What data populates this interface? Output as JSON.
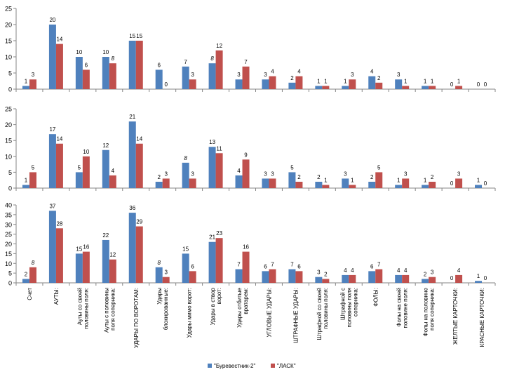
{
  "chart_data": {
    "type": "bar",
    "categories": [
      "Счет",
      "АУТЫ:",
      "Ауты со своей половины поля:",
      "Ауты с половины поля соперника:",
      "УДАРЫ ПО ВОРОТАМ:",
      "Удары блокированные:",
      "Удары мимо ворот:",
      "Удары в створ ворот:",
      "Удары отбитые вратарем:",
      "УГЛОВЫЕ УДАРЫ:",
      "ШТРАФНЫЕ УДАРЫ:",
      "Штрафной со своей половины поля:",
      "Штрафной с половины поля соперника:",
      "ФОЛЫ:",
      "Фолы на своей половине поля:",
      "Фолы на половине поля соперника:",
      "ЖЕЛТЫЕ КАРТОЧКИ:",
      "КРАСНЫЕ КАРТОЧКИ:"
    ],
    "legend": [
      "\"Буревестник-2\"",
      "\"ЛАСК\""
    ],
    "colors": {
      "series1": "#4f81bd",
      "series2": "#c0504d",
      "axis": "#868686",
      "text": "#000000"
    },
    "panels": [
      {
        "yticks": [
          0,
          5,
          10,
          15,
          20,
          25
        ],
        "ylim": [
          0,
          25
        ],
        "series": [
          {
            "name": "\"Буревестник-2\"",
            "values": [
              1,
              20,
              10,
              10,
              15,
              6,
              7,
              8,
              3,
              3,
              2,
              1,
              1,
              4,
              3,
              1,
              0,
              0
            ]
          },
          {
            "name": "\"ЛАСК\"",
            "values": [
              3,
              14,
              6,
              8,
              15,
              0,
              3,
              12,
              7,
              4,
              4,
              1,
              3,
              2,
              1,
              1,
              1,
              0
            ]
          }
        ]
      },
      {
        "yticks": [
          0,
          5,
          10,
          15,
          20,
          25
        ],
        "ylim": [
          0,
          25
        ],
        "series": [
          {
            "name": "\"Буревестник-2\"",
            "values": [
              1,
              17,
              5,
              12,
              21,
              2,
              8,
              13,
              4,
              3,
              5,
              2,
              3,
              2,
              1,
              1,
              0,
              1
            ]
          },
          {
            "name": "\"ЛАСК\"",
            "values": [
              5,
              14,
              10,
              4,
              14,
              3,
              3,
              11,
              9,
              3,
              2,
              1,
              1,
              5,
              3,
              2,
              3,
              0
            ]
          }
        ]
      },
      {
        "yticks": [
          0,
          5,
          10,
          15,
          20,
          25,
          30,
          35,
          40
        ],
        "ylim": [
          0,
          40
        ],
        "series": [
          {
            "name": "\"Буревестник-2\"",
            "values": [
              2,
              37,
              15,
              22,
              36,
              8,
              15,
              21,
              7,
              6,
              7,
              3,
              4,
              6,
              4,
              2,
              0,
              1
            ]
          },
          {
            "name": "\"ЛАСК\"",
            "values": [
              8,
              28,
              16,
              12,
              29,
              3,
              6,
              23,
              16,
              7,
              6,
              2,
              4,
              7,
              4,
              3,
              4,
              0
            ]
          }
        ]
      }
    ]
  }
}
